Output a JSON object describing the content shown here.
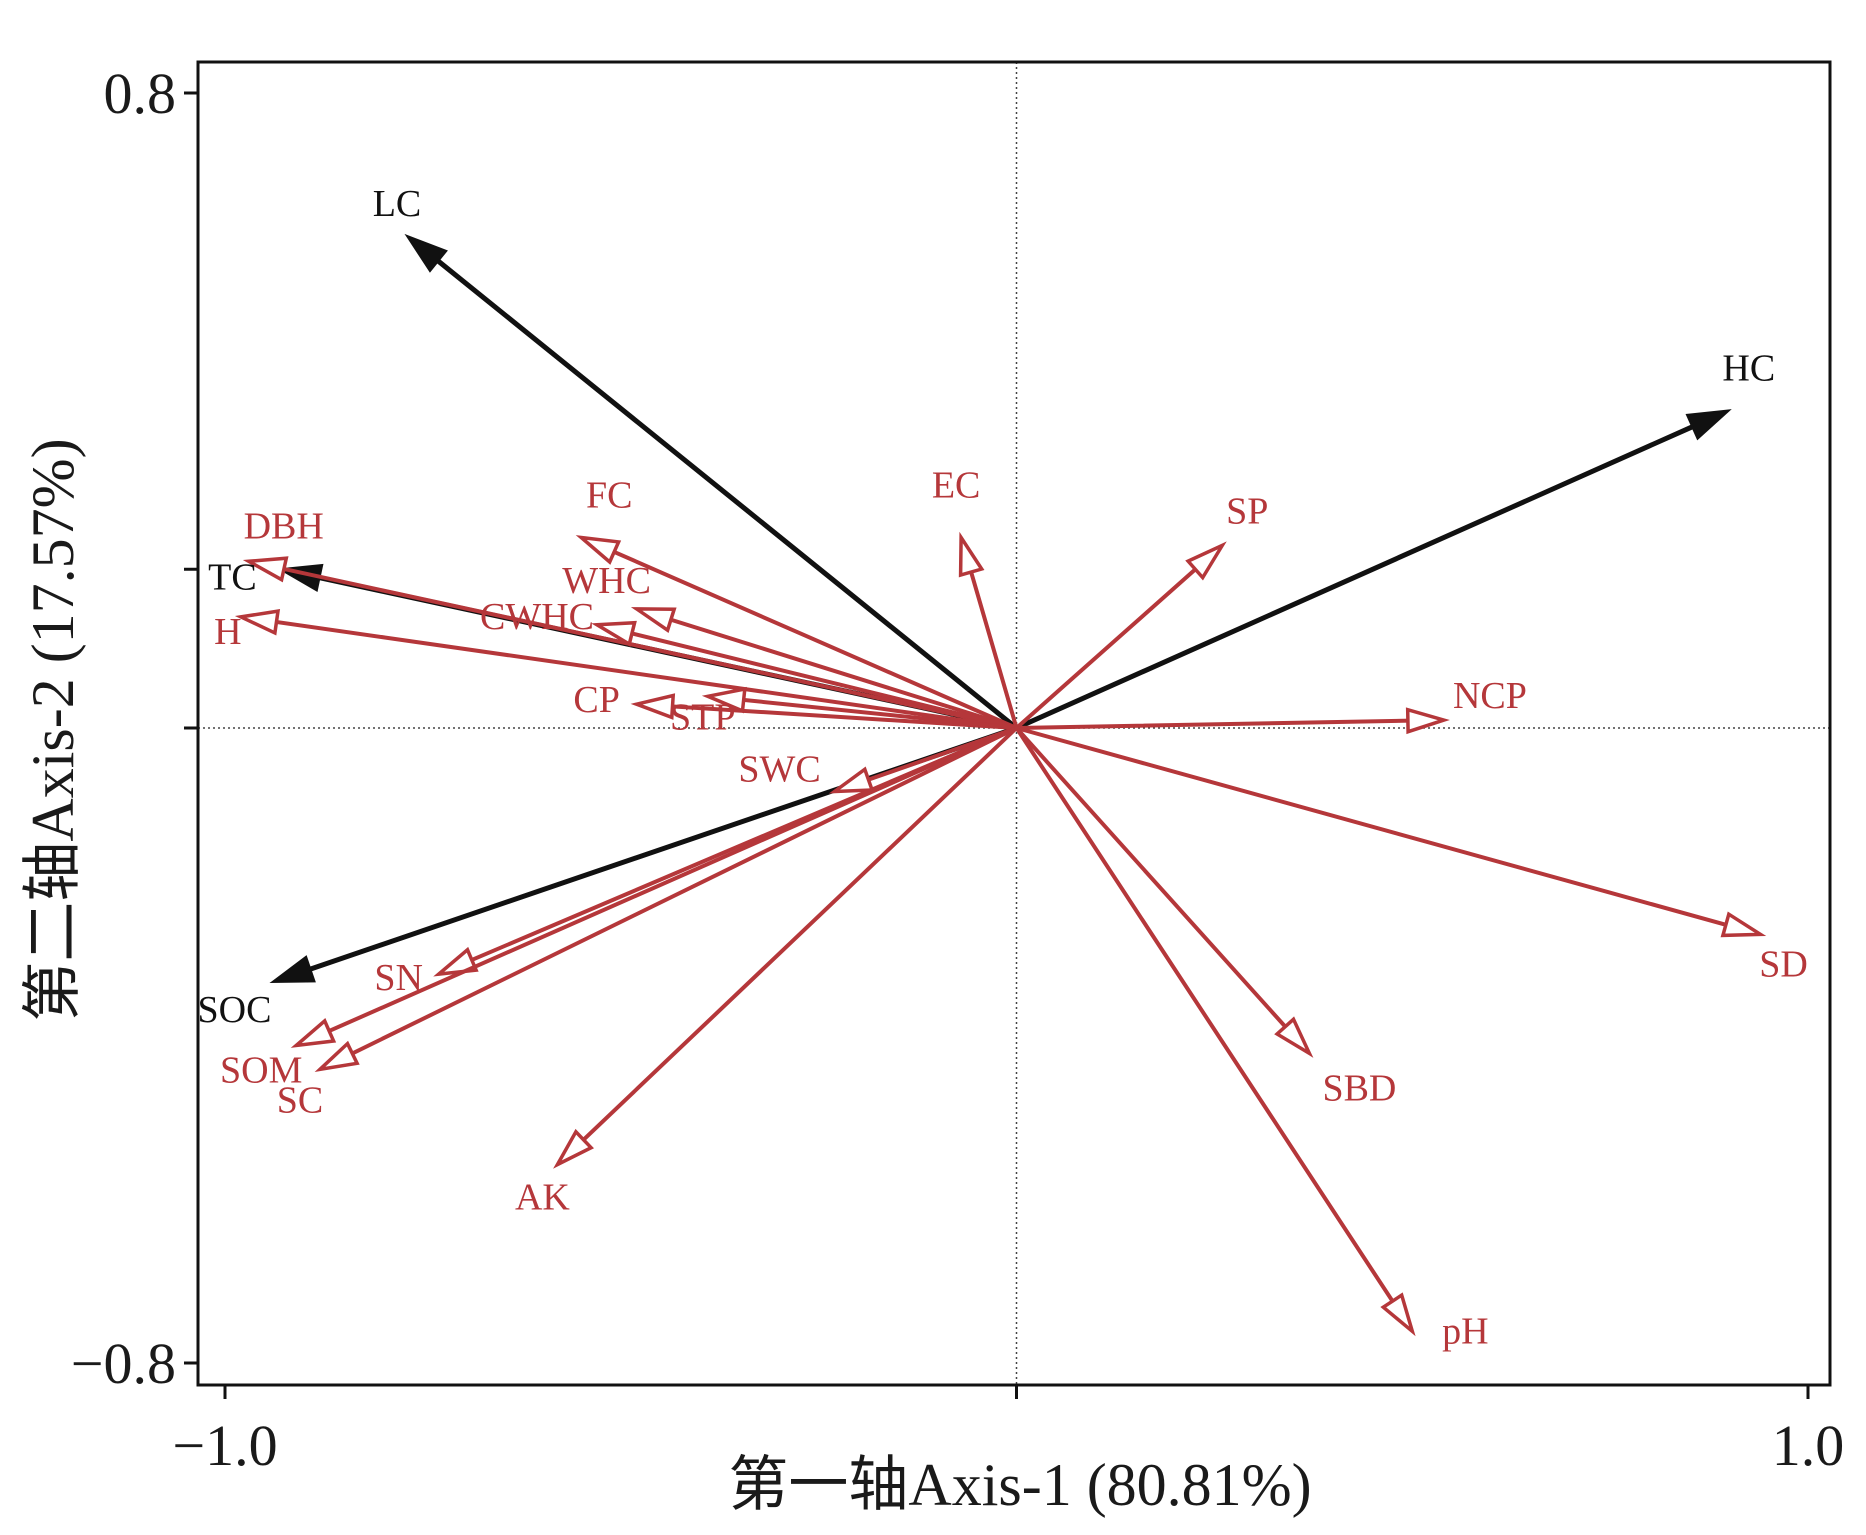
{
  "chart_data": {
    "type": "biplot",
    "xlabel": "第一轴Axis-1 (80.81%)",
    "ylabel": "第二轴Axis-2 (17.57%)",
    "xlim": [
      -1.0,
      1.0
    ],
    "ylim": [
      -0.8,
      0.8
    ],
    "x_ticks": [
      {
        "value": -1.0,
        "label": "−1.0"
      },
      {
        "value": 1.0,
        "label": "1.0"
      }
    ],
    "y_ticks": [
      {
        "value": 0.8,
        "label": "0.8"
      },
      {
        "value": -0.8,
        "label": "−0.8"
      }
    ],
    "series": [
      {
        "name": "explanatory",
        "color": "#111111",
        "arrow_style": "filled",
        "vectors": [
          {
            "label": "LC",
            "x": -0.77,
            "y": 0.62
          },
          {
            "label": "HC",
            "x": 0.9,
            "y": 0.4
          },
          {
            "label": "TC",
            "x": -0.93,
            "y": 0.2
          },
          {
            "label": "SOC",
            "x": -0.94,
            "y": -0.32
          }
        ]
      },
      {
        "name": "response",
        "color": "#b5373a",
        "arrow_style": "open",
        "vectors": [
          {
            "label": "DBH",
            "x": -0.97,
            "y": 0.21
          },
          {
            "label": "H",
            "x": -0.98,
            "y": 0.14
          },
          {
            "label": "FC",
            "x": -0.55,
            "y": 0.24
          },
          {
            "label": "WHC",
            "x": -0.48,
            "y": 0.15
          },
          {
            "label": "CWHC",
            "x": -0.53,
            "y": 0.13
          },
          {
            "label": "CP",
            "x": -0.48,
            "y": 0.03
          },
          {
            "label": "STP",
            "x": -0.39,
            "y": 0.04
          },
          {
            "label": "SWC",
            "x": -0.23,
            "y": -0.08
          },
          {
            "label": "SN",
            "x": -0.73,
            "y": -0.31
          },
          {
            "label": "SOM",
            "x": -0.91,
            "y": -0.4
          },
          {
            "label": "SC",
            "x": -0.88,
            "y": -0.43
          },
          {
            "label": "AK",
            "x": -0.58,
            "y": -0.55
          },
          {
            "label": "EC",
            "x": -0.07,
            "y": 0.24
          },
          {
            "label": "SP",
            "x": 0.26,
            "y": 0.23
          },
          {
            "label": "NCP",
            "x": 0.54,
            "y": 0.01
          },
          {
            "label": "SD",
            "x": 0.94,
            "y": -0.26
          },
          {
            "label": "SBD",
            "x": 0.37,
            "y": -0.41
          },
          {
            "label": "pH",
            "x": 0.5,
            "y": -0.76
          }
        ]
      }
    ]
  }
}
